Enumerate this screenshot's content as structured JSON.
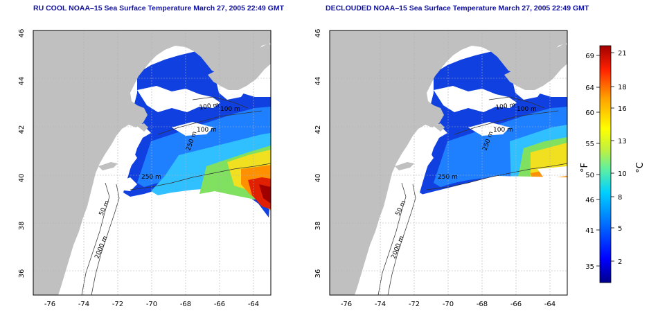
{
  "maps": [
    {
      "title": "RU COOL NOAA–15 Sea Surface Temperature March 27, 2005 22:49 GMT",
      "contour_labels": [
        "100 m",
        "100 m",
        "100 m",
        "250 m",
        "250 m",
        "50 m",
        "2000 m"
      ]
    },
    {
      "title": "DECLOUDED NOAA–15 Sea Surface Temperature March 27, 2005 22:49 GMT",
      "contour_labels": [
        "100 m",
        "100 m",
        "100 m",
        "250 m",
        "250 m",
        "50 m",
        "2000 m"
      ]
    }
  ],
  "axes": {
    "lon_ticks": [
      "-76",
      "-74",
      "-72",
      "-70",
      "-68",
      "-66",
      "-64"
    ],
    "lat_ticks": [
      "46",
      "44",
      "42",
      "40",
      "38",
      "36"
    ],
    "lon_range": [
      -77,
      -63
    ],
    "lat_range": [
      35,
      46
    ]
  },
  "colorbar": {
    "f_ticks": [
      "69",
      "64",
      "60",
      "55",
      "50",
      "46",
      "41",
      "35"
    ],
    "c_ticks": [
      "21",
      "18",
      "16",
      "13",
      "10",
      "8",
      "5",
      "2"
    ],
    "f_label": "°F",
    "c_label": "°C",
    "colors": [
      "#00008b",
      "#0000ff",
      "#0060ff",
      "#00c0ff",
      "#40e0d0",
      "#a0f060",
      "#ffff00",
      "#ffa000",
      "#ff3000",
      "#b00000"
    ]
  },
  "colors": {
    "land": "#c0c0c0",
    "title": "#1010a0"
  }
}
